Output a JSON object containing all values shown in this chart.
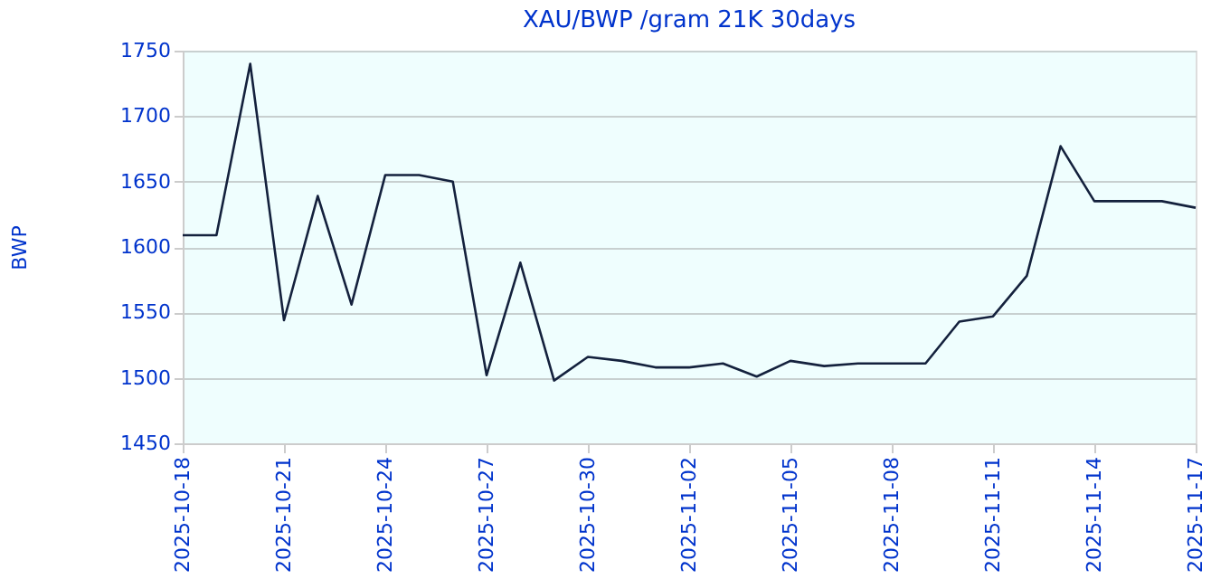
{
  "chart_data": {
    "type": "line",
    "title": "XAU/BWP /gram 21K 30days",
    "ylabel": "BWP",
    "x": [
      "2025-10-18",
      "2025-10-19",
      "2025-10-20",
      "2025-10-21",
      "2025-10-22",
      "2025-10-23",
      "2025-10-24",
      "2025-10-25",
      "2025-10-26",
      "2025-10-27",
      "2025-10-28",
      "2025-10-29",
      "2025-10-30",
      "2025-10-31",
      "2025-11-01",
      "2025-11-02",
      "2025-11-03",
      "2025-11-04",
      "2025-11-05",
      "2025-11-06",
      "2025-11-07",
      "2025-11-08",
      "2025-11-09",
      "2025-11-10",
      "2025-11-11",
      "2025-11-12",
      "2025-11-13",
      "2025-11-14",
      "2025-11-15",
      "2025-11-16",
      "2025-11-17"
    ],
    "series": [
      {
        "color": "#14213d",
        "values": [
          1609,
          1609,
          1740,
          1544,
          1639,
          1556,
          1655,
          1655,
          1650,
          1502,
          1588,
          1498,
          1516,
          1513,
          1508,
          1508,
          1511,
          1501,
          1513,
          1509,
          1511,
          1511,
          1511,
          1543,
          1547,
          1578,
          1677,
          1635,
          1635,
          1635,
          1630
        ]
      }
    ],
    "xlim": [
      "2025-10-18",
      "2025-11-17"
    ],
    "xticks": [
      "2025-10-18",
      "2025-10-21",
      "2025-10-24",
      "2025-10-27",
      "2025-10-30",
      "2025-11-02",
      "2025-11-05",
      "2025-11-08",
      "2025-11-11",
      "2025-11-14",
      "2025-11-17"
    ],
    "ylim": [
      1450,
      1750
    ],
    "yticks": [
      1450,
      1500,
      1550,
      1600,
      1650,
      1700,
      1750
    ],
    "grid": "y",
    "marker": "none",
    "line_style": "solid"
  }
}
